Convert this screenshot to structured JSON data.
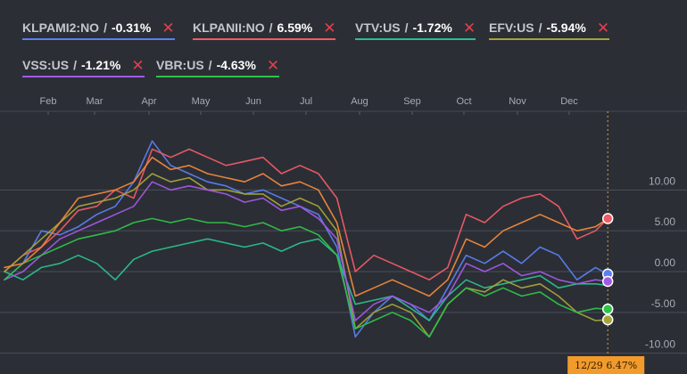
{
  "legend": [
    {
      "ticker": "KLPAMI2:NO",
      "sep": "/",
      "pct": "-0.31%",
      "color": "#5b7ff0",
      "close": "✕"
    },
    {
      "ticker": "KLPANII:NO",
      "sep": "/",
      "pct": "6.59%",
      "color": "#ef5b67",
      "close": "✕"
    },
    {
      "ticker": "VTV:US",
      "sep": "/",
      "pct": "-1.72%",
      "color": "#2bbf8b",
      "close": "✕"
    },
    {
      "ticker": "EFV:US",
      "sep": "/",
      "pct": "-5.94%",
      "color": "#a5a43a",
      "close": "✕"
    },
    {
      "ticker": "VSS:US",
      "sep": "/",
      "pct": "-1.21%",
      "color": "#a259e6",
      "close": "✕"
    },
    {
      "ticker": "VBR:US",
      "sep": "/",
      "pct": "-4.63%",
      "color": "#2fc24a",
      "close": "✕"
    }
  ],
  "badge": {
    "date": "12/29",
    "value": "6.47%",
    "color": "#f29b2b"
  },
  "chart_data": {
    "type": "line",
    "months": [
      "Feb",
      "Mar",
      "Apr",
      "May",
      "Jun",
      "Jul",
      "Aug",
      "Sep",
      "Oct",
      "Nov",
      "Dec"
    ],
    "y_ticks": [
      "10.00",
      "5.00",
      "0.00",
      "-5.00",
      "-10.00"
    ],
    "y_tick_values": [
      10,
      5,
      0,
      -5,
      -10
    ],
    "ylim": [
      -12,
      18
    ],
    "x_range": [
      0,
      100
    ],
    "grid": true,
    "series": [
      {
        "name": "KLPAMI2:NO",
        "color": "#5b7ff0",
        "end_marker": true,
        "points": [
          [
            0,
            -1
          ],
          [
            3,
            1
          ],
          [
            6,
            5
          ],
          [
            9,
            4.5
          ],
          [
            12,
            5.5
          ],
          [
            15,
            7
          ],
          [
            18,
            8
          ],
          [
            21,
            11
          ],
          [
            24,
            16
          ],
          [
            27,
            13
          ],
          [
            30,
            12
          ],
          [
            33,
            11
          ],
          [
            36,
            10.5
          ],
          [
            39,
            9.5
          ],
          [
            42,
            10
          ],
          [
            45,
            9
          ],
          [
            48,
            8
          ],
          [
            51,
            7
          ],
          [
            54,
            3
          ],
          [
            57,
            -8
          ],
          [
            60,
            -5
          ],
          [
            63,
            -3
          ],
          [
            66,
            -4
          ],
          [
            69,
            -6
          ],
          [
            72,
            -2
          ],
          [
            75,
            2
          ],
          [
            78,
            1
          ],
          [
            81,
            2.5
          ],
          [
            84,
            1
          ],
          [
            87,
            3
          ],
          [
            90,
            2
          ],
          [
            93,
            -1
          ],
          [
            96,
            0.5
          ],
          [
            98,
            -0.3
          ]
        ]
      },
      {
        "name": "KLPANII:NO",
        "color": "#ef5b67",
        "end_marker": true,
        "points": [
          [
            0,
            0
          ],
          [
            3,
            2
          ],
          [
            6,
            3
          ],
          [
            9,
            5
          ],
          [
            12,
            7.5
          ],
          [
            15,
            8
          ],
          [
            18,
            10
          ],
          [
            21,
            9
          ],
          [
            24,
            15
          ],
          [
            27,
            14
          ],
          [
            30,
            15
          ],
          [
            33,
            14
          ],
          [
            36,
            13
          ],
          [
            39,
            13.5
          ],
          [
            42,
            14
          ],
          [
            45,
            12
          ],
          [
            48,
            13
          ],
          [
            51,
            12
          ],
          [
            54,
            9
          ],
          [
            57,
            0
          ],
          [
            60,
            2
          ],
          [
            63,
            1
          ],
          [
            66,
            0
          ],
          [
            69,
            -1
          ],
          [
            72,
            0.5
          ],
          [
            75,
            7
          ],
          [
            78,
            6
          ],
          [
            81,
            8
          ],
          [
            84,
            9
          ],
          [
            87,
            9.5
          ],
          [
            90,
            8
          ],
          [
            93,
            4
          ],
          [
            96,
            5
          ],
          [
            98,
            6.5
          ]
        ]
      },
      {
        "name": "VTV:US",
        "color": "#2bbf8b",
        "end_marker": false,
        "points": [
          [
            0,
            0
          ],
          [
            3,
            -1
          ],
          [
            6,
            0.5
          ],
          [
            9,
            1
          ],
          [
            12,
            2
          ],
          [
            15,
            1
          ],
          [
            18,
            -1
          ],
          [
            21,
            1.5
          ],
          [
            24,
            2.5
          ],
          [
            27,
            3
          ],
          [
            30,
            3.5
          ],
          [
            33,
            4
          ],
          [
            36,
            3.5
          ],
          [
            39,
            3
          ],
          [
            42,
            3.5
          ],
          [
            45,
            2.5
          ],
          [
            48,
            3.5
          ],
          [
            51,
            4
          ],
          [
            54,
            2
          ],
          [
            57,
            -4
          ],
          [
            60,
            -3.5
          ],
          [
            63,
            -3
          ],
          [
            66,
            -4.5
          ],
          [
            69,
            -6
          ],
          [
            72,
            -3
          ],
          [
            75,
            -1
          ],
          [
            78,
            -2
          ],
          [
            81,
            -1.5
          ],
          [
            84,
            -1
          ],
          [
            87,
            -0.5
          ],
          [
            90,
            -2
          ],
          [
            93,
            -1.5
          ],
          [
            96,
            -1.5
          ],
          [
            98,
            -1.7
          ]
        ]
      },
      {
        "name": "EFV:US",
        "color": "#a5a43a",
        "end_marker": true,
        "points": [
          [
            0,
            0
          ],
          [
            3,
            2
          ],
          [
            6,
            4
          ],
          [
            9,
            6
          ],
          [
            12,
            8
          ],
          [
            15,
            8.5
          ],
          [
            18,
            9
          ],
          [
            21,
            10
          ],
          [
            24,
            12
          ],
          [
            27,
            11
          ],
          [
            30,
            11.5
          ],
          [
            33,
            10
          ],
          [
            36,
            10
          ],
          [
            39,
            9.5
          ],
          [
            42,
            9.5
          ],
          [
            45,
            8
          ],
          [
            48,
            9
          ],
          [
            51,
            8
          ],
          [
            54,
            5
          ],
          [
            57,
            -7
          ],
          [
            60,
            -5
          ],
          [
            63,
            -4
          ],
          [
            66,
            -5
          ],
          [
            69,
            -8
          ],
          [
            72,
            -4
          ],
          [
            75,
            -2
          ],
          [
            78,
            -2.5
          ],
          [
            81,
            -1
          ],
          [
            84,
            -2
          ],
          [
            87,
            -1.5
          ],
          [
            90,
            -3
          ],
          [
            93,
            -5
          ],
          [
            96,
            -6
          ],
          [
            98,
            -5.9
          ]
        ]
      },
      {
        "name": "VSS:US",
        "color": "#a259e6",
        "end_marker": true,
        "points": [
          [
            0,
            -1
          ],
          [
            3,
            0
          ],
          [
            6,
            2
          ],
          [
            9,
            4
          ],
          [
            12,
            5
          ],
          [
            15,
            6
          ],
          [
            18,
            7
          ],
          [
            21,
            8
          ],
          [
            24,
            11
          ],
          [
            27,
            10
          ],
          [
            30,
            10.5
          ],
          [
            33,
            10
          ],
          [
            36,
            9.5
          ],
          [
            39,
            8.5
          ],
          [
            42,
            9
          ],
          [
            45,
            7.5
          ],
          [
            48,
            8
          ],
          [
            51,
            6.5
          ],
          [
            54,
            4
          ],
          [
            57,
            -6
          ],
          [
            60,
            -4
          ],
          [
            63,
            -3
          ],
          [
            66,
            -4
          ],
          [
            69,
            -5
          ],
          [
            72,
            -3
          ],
          [
            75,
            1
          ],
          [
            78,
            0
          ],
          [
            81,
            1
          ],
          [
            84,
            -0.5
          ],
          [
            87,
            0
          ],
          [
            90,
            -1
          ],
          [
            93,
            -1.5
          ],
          [
            96,
            -1
          ],
          [
            98,
            -1.2
          ]
        ]
      },
      {
        "name": "VBR:US",
        "color": "#2fc24a",
        "end_marker": true,
        "points": [
          [
            0,
            -1
          ],
          [
            3,
            1
          ],
          [
            6,
            2
          ],
          [
            9,
            3
          ],
          [
            12,
            4
          ],
          [
            15,
            4.5
          ],
          [
            18,
            5
          ],
          [
            21,
            6
          ],
          [
            24,
            6.5
          ],
          [
            27,
            6
          ],
          [
            30,
            6.5
          ],
          [
            33,
            6
          ],
          [
            36,
            6
          ],
          [
            39,
            5.5
          ],
          [
            42,
            6
          ],
          [
            45,
            5
          ],
          [
            48,
            5.5
          ],
          [
            51,
            4.5
          ],
          [
            54,
            2
          ],
          [
            57,
            -7
          ],
          [
            60,
            -6
          ],
          [
            63,
            -5
          ],
          [
            66,
            -6
          ],
          [
            69,
            -8
          ],
          [
            72,
            -4
          ],
          [
            75,
            -2
          ],
          [
            78,
            -3
          ],
          [
            81,
            -2
          ],
          [
            84,
            -3
          ],
          [
            87,
            -2.5
          ],
          [
            90,
            -4
          ],
          [
            93,
            -5
          ],
          [
            96,
            -4.5
          ],
          [
            98,
            -4.6
          ]
        ]
      },
      {
        "name": "",
        "color": "#f0883c",
        "end_marker": false,
        "points": [
          [
            0,
            0.5
          ],
          [
            3,
            1
          ],
          [
            6,
            3
          ],
          [
            9,
            6
          ],
          [
            12,
            9
          ],
          [
            15,
            9.5
          ],
          [
            18,
            10
          ],
          [
            21,
            11
          ],
          [
            24,
            14
          ],
          [
            27,
            12.5
          ],
          [
            30,
            13
          ],
          [
            33,
            12
          ],
          [
            36,
            11.5
          ],
          [
            39,
            11
          ],
          [
            42,
            12
          ],
          [
            45,
            10.5
          ],
          [
            48,
            11
          ],
          [
            51,
            10
          ],
          [
            54,
            6
          ],
          [
            57,
            -3
          ],
          [
            60,
            -2
          ],
          [
            63,
            -1
          ],
          [
            66,
            -2
          ],
          [
            69,
            -3
          ],
          [
            72,
            -1
          ],
          [
            75,
            4
          ],
          [
            78,
            3
          ],
          [
            81,
            5
          ],
          [
            84,
            6
          ],
          [
            87,
            7
          ],
          [
            90,
            6
          ],
          [
            93,
            5
          ],
          [
            96,
            5.5
          ],
          [
            98,
            6.47
          ]
        ]
      }
    ]
  }
}
